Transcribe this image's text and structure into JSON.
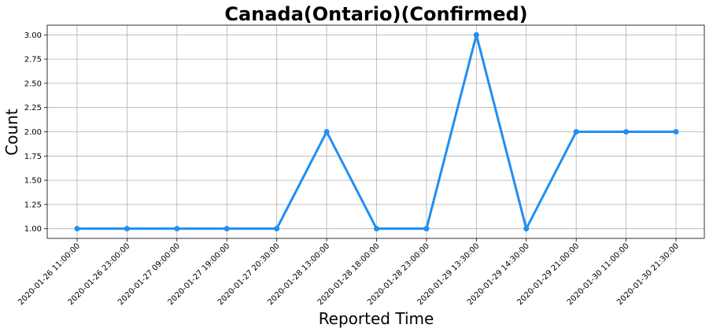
{
  "chart_data": {
    "type": "line",
    "title": "Canada(Ontario)(Confirmed)",
    "xlabel": "Reported Time",
    "ylabel": "Count",
    "categories": [
      "2020-01-26 11:00:00",
      "2020-01-26 23:00:00",
      "2020-01-27 09:00:00",
      "2020-01-27 19:00:00",
      "2020-01-27 20:30:00",
      "2020-01-28 13:00:00",
      "2020-01-28 18:00:00",
      "2020-01-28 23:00:00",
      "2020-01-29 13:30:00",
      "2020-01-29 14:30:00",
      "2020-01-29 21:00:00",
      "2020-01-30 11:00:00",
      "2020-01-30 21:30:00"
    ],
    "values": [
      1,
      1,
      1,
      1,
      1,
      2,
      1,
      1,
      3,
      1,
      2,
      2,
      2
    ],
    "ylim": [
      0.9,
      3.1
    ],
    "yticks": [
      1.0,
      1.25,
      1.5,
      1.75,
      2.0,
      2.25,
      2.5,
      2.75,
      3.0
    ],
    "ytick_labels": [
      "1.00",
      "1.25",
      "1.50",
      "1.75",
      "2.00",
      "2.25",
      "2.50",
      "2.75",
      "3.00"
    ],
    "grid": true,
    "line_color": "#1f8ff0",
    "marker": "circle"
  }
}
